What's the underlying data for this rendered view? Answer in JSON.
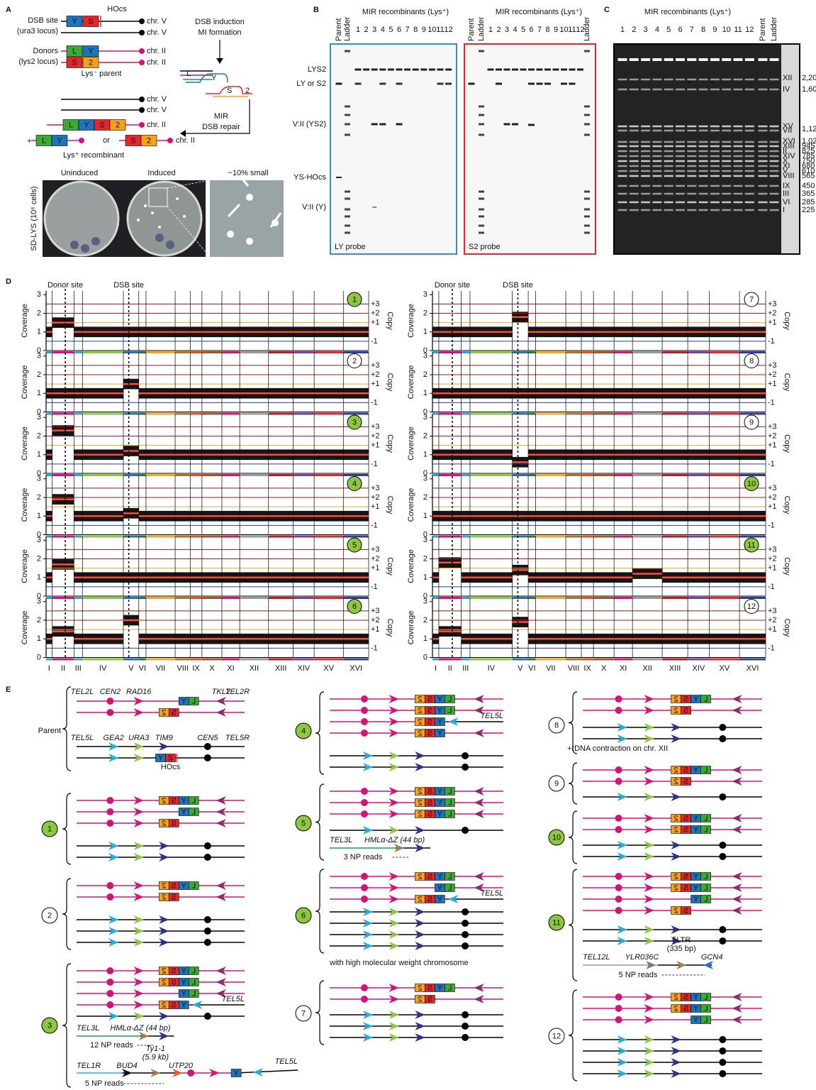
{
  "box_letters": [
    "L",
    "Y",
    "S",
    "2"
  ],
  "box_colors": [
    "#3aaa35",
    "#1c75bc",
    "#e8262a",
    "#f7a11a"
  ],
  "panel_a": {
    "label": "A",
    "dsb_site": "DSB site",
    "ura3_locus": "(ura3 locus)",
    "donors": "Donors",
    "lys2_locus": "(lys2 locus)",
    "hocs": "HOcs",
    "chr_v": "chr. V",
    "chr_ii": "chr. II",
    "lys_minus_parent": "Lys⁻ parent",
    "dsb_induction": "DSB induction",
    "mi_formation": "MI formation",
    "mir": "MIR",
    "dsb_repair": "DSB repair",
    "plus": "+",
    "or": "or",
    "lys_plus": "Lys⁺ recombinant",
    "uninduced": "Uninduced",
    "induced": "Induced",
    "small": "~10% small",
    "sd_lys": "SD-LYS (10⁶ cells)"
  },
  "panel_b": {
    "label": "B",
    "title": "MIR recombinants (Lys⁺)",
    "lanes": [
      "1",
      "2",
      "3",
      "4",
      "5",
      "6",
      "7",
      "8",
      "9",
      "10",
      "11",
      "12"
    ],
    "parent": "Parent",
    "ladder": "Ladder",
    "band_labels": [
      "LYS2",
      "LY or S2",
      "V:II (YS2)",
      "YS-HOcs",
      "V:II (Y)"
    ],
    "ly_probe": "LY probe",
    "s2_probe": "S2 probe"
  },
  "panel_c": {
    "label": "C",
    "title": "MIR recombinants (Lys⁺)",
    "lanes": [
      "1",
      "2",
      "3",
      "4",
      "5",
      "6",
      "7",
      "8",
      "9",
      "10",
      "11",
      "12"
    ],
    "parent": "Parent",
    "ladder": "Ladder",
    "asterisk": "*",
    "chromosomes": [
      "XII",
      "IV",
      "XV",
      "VII",
      "XVI",
      "XIII",
      "II",
      "XIV",
      "X",
      "XI",
      "V",
      "VIII",
      "IX",
      "III",
      "VI",
      "I"
    ],
    "sizes": [
      "2,200",
      "1,600",
      "1,125",
      "1,020",
      "945",
      "825",
      "785",
      "750",
      "680",
      "610",
      "565",
      "450",
      "365",
      "285",
      "225"
    ]
  },
  "panel_d": {
    "label": "D",
    "donor_site": "Donor site",
    "dsb_site": "DSB site",
    "ylabel": "Coverage",
    "y2label": "Copy",
    "ylim": [
      0,
      3.2
    ],
    "yticks": [
      0,
      1,
      2,
      3
    ],
    "copy_ticks": [
      {
        "value": 2.5,
        "label": "+3"
      },
      {
        "value": 2.0,
        "label": "+2"
      },
      {
        "value": 1.5,
        "label": "+1"
      },
      {
        "value": 0.5,
        "label": "-1"
      }
    ],
    "copy_line_colors": [
      "#8b1a1a",
      "#a3201c",
      "#f0a030",
      "#2a3f9a"
    ],
    "chromosomes": [
      "I",
      "II",
      "III",
      "IV",
      "V",
      "VI",
      "VII",
      "VIII",
      "IX",
      "X",
      "XI",
      "XII",
      "XIII",
      "XIV",
      "XV",
      "XVI"
    ],
    "chromosome_colors": [
      "#29a3dc",
      "#d6127a",
      "#3ba0d8",
      "#8dc63f",
      "#2e6db4",
      "#1a7a4a",
      "#f7a823",
      "#a07830",
      "#e94e1b",
      "#9a5a2d",
      "#d6156f",
      "#999999",
      "#c0182d",
      "#7a3f9d",
      "#e3262f",
      "#2c3e97"
    ],
    "panels": [
      {
        "label": "1",
        "filled": true,
        "levels": [
          1,
          1.5,
          1,
          1,
          1,
          1,
          1,
          1,
          1,
          1,
          1,
          1,
          1,
          1,
          1,
          1
        ]
      },
      {
        "label": "2",
        "filled": false,
        "levels": [
          1,
          1,
          1,
          1,
          1.5,
          1,
          1,
          1,
          1,
          1,
          1,
          1,
          1,
          1,
          1,
          1
        ]
      },
      {
        "label": "3",
        "filled": true,
        "levels": [
          1,
          2.3,
          1,
          1,
          1.2,
          1,
          1,
          1,
          1,
          1,
          1,
          1,
          1,
          1,
          1,
          1
        ]
      },
      {
        "label": "4",
        "filled": true,
        "levels": [
          1,
          1.9,
          1,
          1,
          1.15,
          1,
          1,
          1,
          1,
          1,
          1,
          1,
          1,
          1,
          1,
          1
        ]
      },
      {
        "label": "5",
        "filled": true,
        "levels": [
          1,
          1.7,
          1,
          1,
          1,
          1,
          1,
          1,
          1,
          1,
          1,
          1,
          1,
          1,
          1,
          1
        ]
      },
      {
        "label": "6",
        "filled": true,
        "levels": [
          1,
          1.4,
          1,
          1,
          2.0,
          1,
          1,
          1,
          1,
          1,
          1,
          1,
          1,
          1,
          1,
          1
        ]
      },
      {
        "label": "7",
        "filled": false,
        "levels": [
          1,
          1,
          1,
          1,
          1.8,
          1,
          1,
          1,
          1,
          1,
          1,
          1,
          1,
          1,
          1,
          1
        ]
      },
      {
        "label": "8",
        "filled": false,
        "levels": [
          1,
          1,
          1,
          1,
          1,
          1,
          1,
          1,
          1,
          1,
          1,
          1,
          1,
          1,
          1,
          1
        ]
      },
      {
        "label": "9",
        "filled": false,
        "levels": [
          1,
          1,
          1,
          1,
          0.6,
          1,
          1,
          1,
          1,
          1,
          1,
          1,
          1,
          1,
          1,
          1
        ]
      },
      {
        "label": "10",
        "filled": true,
        "levels": [
          1,
          1,
          1,
          1,
          1,
          1,
          1,
          1,
          1,
          1,
          1,
          1,
          1,
          1,
          1,
          1
        ]
      },
      {
        "label": "11",
        "filled": true,
        "levels": [
          1,
          1.8,
          1,
          1,
          1.4,
          1,
          1,
          1,
          1,
          1,
          1,
          1.2,
          1,
          1,
          1,
          1
        ]
      },
      {
        "label": "12",
        "filled": false,
        "levels": [
          1,
          1.4,
          1,
          1,
          1.9,
          1,
          1,
          1,
          1,
          1,
          1,
          1,
          1,
          1,
          1,
          1
        ]
      }
    ]
  },
  "panel_e": {
    "label": "E",
    "parent": "Parent",
    "genes_ii": [
      "TEL2L",
      "CEN2",
      "RAD16",
      "TKL2",
      "TEL2R"
    ],
    "genes_v": [
      "TEL5L",
      "GEA2",
      "URA3",
      "TIM9",
      "CEN5",
      "TEL5R"
    ],
    "hocs": "HOcs",
    "tel5l": "TEL5L",
    "tel3l": "TEL3L",
    "hml": "HMLα-ΔZ (44 bp)",
    "reads_12": "12 NP reads",
    "reads_3": "3 NP reads",
    "reads_5": "5 NP reads",
    "tel1r": "TEL1R",
    "bud4": "BUD4",
    "ty1": "Ty1-1",
    "ty1_size": "(5.9 kb)",
    "utp20": "UTP20",
    "hmw": "with high molecular weight chromosome",
    "rdna": "+rDNA contraction on chr. XII",
    "tel12l": "TEL12L",
    "ylr036c": "YLR036C",
    "dltr": "δLTR",
    "dltr_size": "(335 bp)",
    "gcn4": "GCN4"
  }
}
